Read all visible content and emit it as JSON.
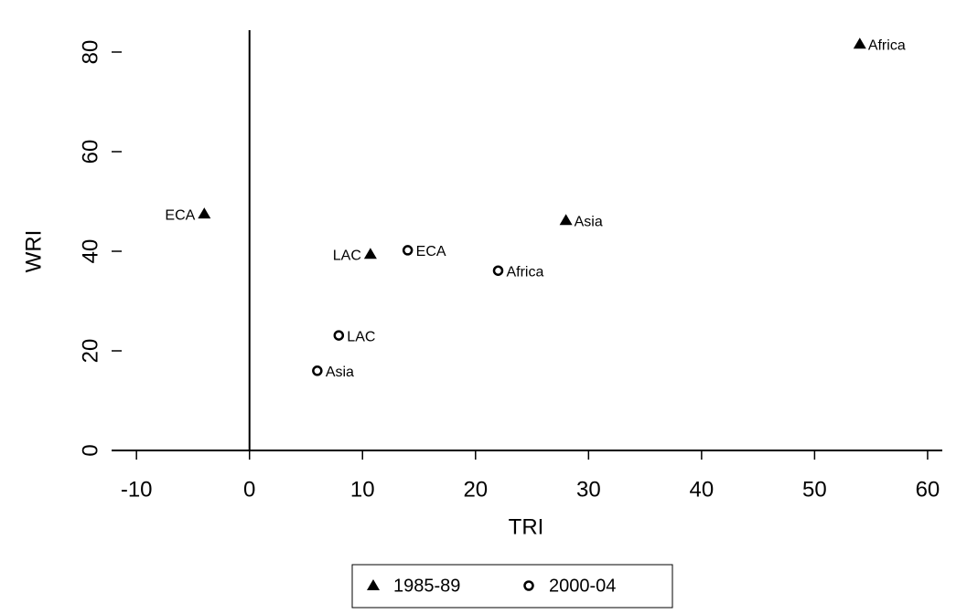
{
  "chart_data": {
    "type": "scatter",
    "x_label": "TRI",
    "y_label": "WRI",
    "xlim": [
      -12.2,
      61.3
    ],
    "ylim": [
      0,
      84.4
    ],
    "xticks": [
      -10,
      0,
      10,
      20,
      30,
      40,
      50,
      60
    ],
    "yticks": [
      0,
      20,
      40,
      60,
      80
    ],
    "series": [
      {
        "name": "1985-89",
        "marker": "triangle",
        "color": "#000000",
        "x": [
          -4,
          10.7,
          28,
          54
        ],
        "y": [
          47.5,
          39.4,
          46.2,
          81.6
        ],
        "labels": [
          "ECA",
          "LAC",
          "Asia",
          "Africa"
        ]
      },
      {
        "name": "2000-04",
        "marker": "circle",
        "color": "#000000",
        "x": [
          14,
          22,
          7.9,
          6
        ],
        "y": [
          40.2,
          36.1,
          23.1,
          16
        ],
        "labels": [
          "ECA",
          "Africa",
          "LAC",
          "Asia"
        ]
      }
    ]
  }
}
